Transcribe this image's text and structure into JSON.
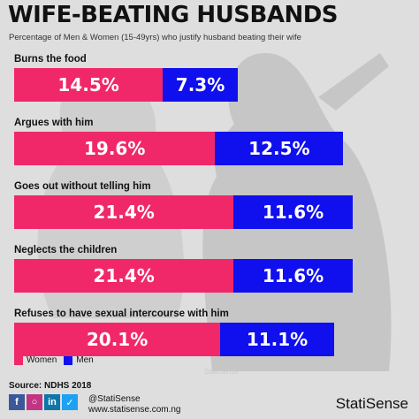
{
  "title": "WIFE-BEATING HUSBANDS",
  "subtitle": "Percentage of Men & Women (15-49yrs) who justify husband beating their wife",
  "colors": {
    "women": "#f0286a",
    "men": "#1010ee",
    "background": "#dedede"
  },
  "chart_data": {
    "type": "bar",
    "orientation": "horizontal-stacked",
    "categories": [
      "Burns the food",
      "Argues with him",
      "Goes out without telling him",
      "Neglects the children",
      "Refuses to have sexual intercourse with him"
    ],
    "series": [
      {
        "name": "Women",
        "values": [
          14.5,
          19.6,
          21.4,
          21.4,
          20.1
        ],
        "labels": [
          "14.5%",
          "19.6%",
          "21.4%",
          "21.4%",
          "20.1%"
        ]
      },
      {
        "name": "Men",
        "values": [
          7.3,
          12.5,
          11.6,
          11.6,
          11.1
        ],
        "labels": [
          "7.3%",
          "12.5%",
          "11.6%",
          "11.6%",
          "11.1%"
        ]
      }
    ],
    "legend_position": "bottom-left"
  },
  "source": "Source: NDHS 2018",
  "social": {
    "handle": "@StatiSense",
    "website": "www.statisense.com.ng",
    "icons": [
      "facebook-icon",
      "instagram-icon",
      "linkedin-icon",
      "twitter-icon"
    ]
  },
  "brand": "StatiSense",
  "watermark": "StatiSense"
}
